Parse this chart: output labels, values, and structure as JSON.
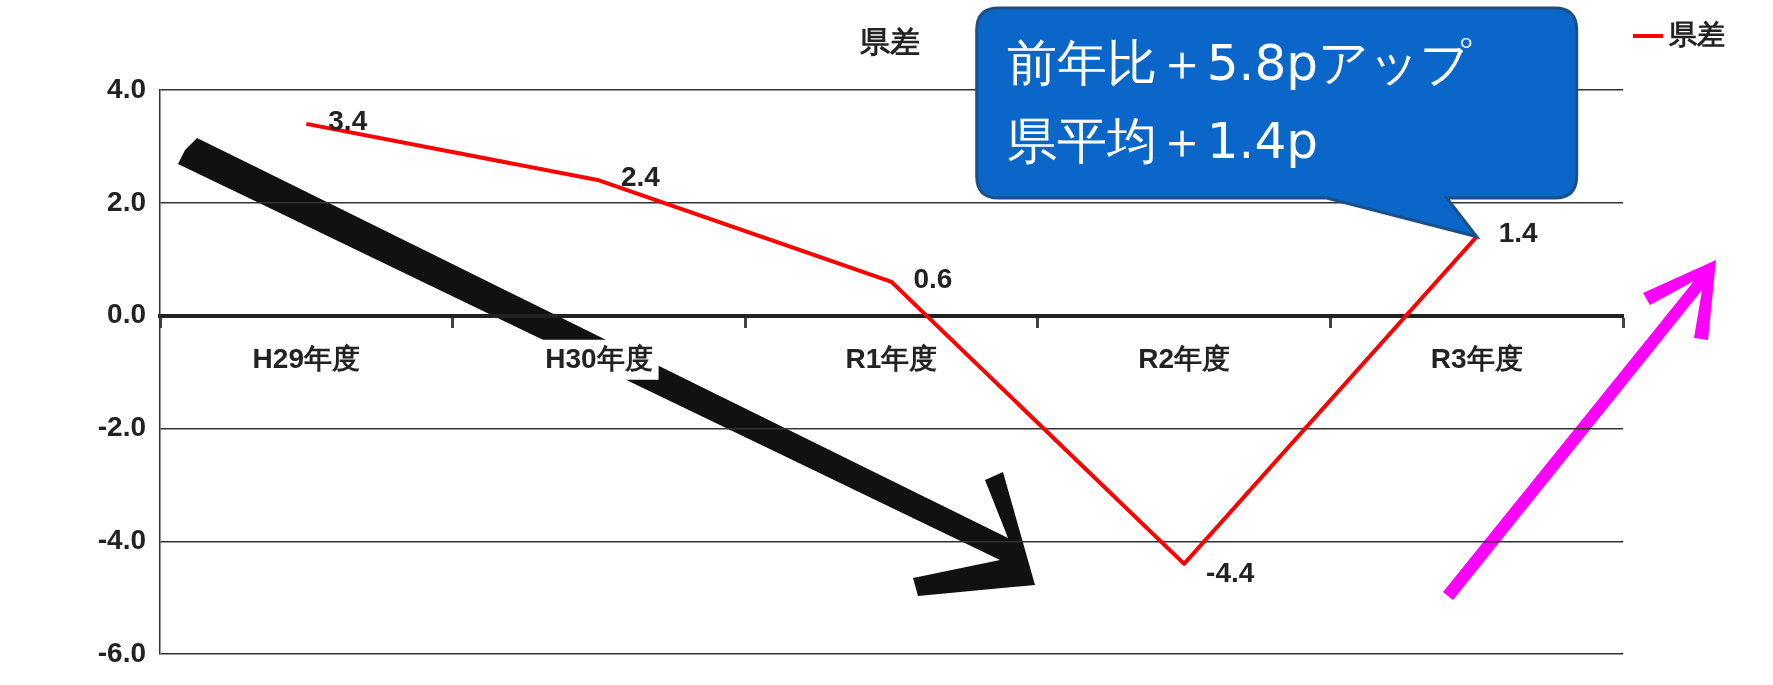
{
  "chart_data": {
    "type": "line",
    "title": "県差",
    "categories": [
      "H29年度",
      "H30年度",
      "R1年度",
      "R2年度",
      "R3年度"
    ],
    "series": [
      {
        "name": "県差",
        "color": "#ff0000",
        "values": [
          3.4,
          2.4,
          0.6,
          -4.4,
          1.4
        ],
        "value_labels": [
          "3.4",
          "2.4",
          "0.6",
          "-4.4",
          "1.4"
        ]
      }
    ],
    "ylim": [
      -6,
      4
    ],
    "yticks": [
      {
        "value": -6,
        "label": "-6.0"
      },
      {
        "value": -4,
        "label": "-4.0"
      },
      {
        "value": -2,
        "label": "-2.0"
      },
      {
        "value": 0,
        "label": "0.0"
      },
      {
        "value": 2,
        "label": "2.0"
      },
      {
        "value": 4,
        "label": "4.0"
      }
    ],
    "grid": "y",
    "legend": "top right",
    "marker": "none",
    "line_style": "solid",
    "annotations": [
      {
        "text": "前年比＋5.8pアップ",
        "x": "R3年度",
        "y": 1.4
      },
      "県平均＋1.4p"
    ]
  }
}
